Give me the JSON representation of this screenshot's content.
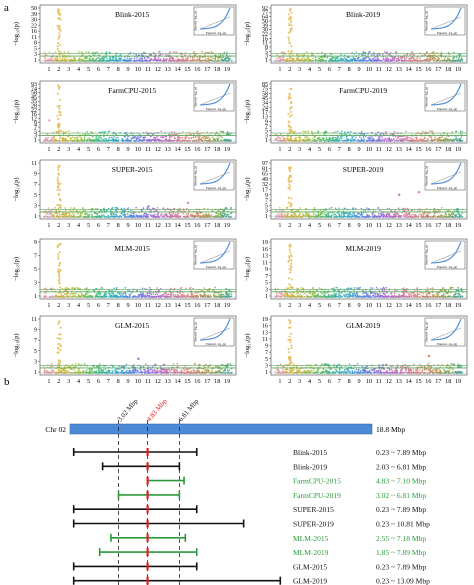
{
  "panel_a": {
    "label": "a"
  },
  "panel_b": {
    "label": "b"
  },
  "y_axis_label": "−log₁₀(p)",
  "inset_axis": {
    "x": "Expected −log₁₀(p)",
    "y": "Observed −log₁₀(p)"
  },
  "chromosomes": [
    "1",
    "2",
    "3",
    "4",
    "5",
    "6",
    "7",
    "8",
    "9",
    "10",
    "11",
    "12",
    "13",
    "14",
    "15",
    "16",
    "17",
    "18",
    "19"
  ],
  "chromosome_colors": [
    "#e8a0a0",
    "#d4b030",
    "#c8b83c",
    "#a4c040",
    "#6cc054",
    "#40b878",
    "#38b8a8",
    "#38a8c8",
    "#5090d8",
    "#7080e0",
    "#9070d8",
    "#b868c8",
    "#c870a8",
    "#d87890",
    "#e08878",
    "#c88a60",
    "#b89a50",
    "#8aa850",
    "#50a888"
  ],
  "colors": {
    "blue_line": "#4a8ad8",
    "green_line": "#5aa85a",
    "highlight": "#e8c060",
    "red": "#e02020",
    "green_text": "#2a9a3a",
    "bar_blue": "#4a8ad8"
  },
  "manhattan_plots": [
    {
      "title": "Blink-2015",
      "yticks": [
        "1",
        "3",
        "5",
        "8",
        "11",
        "16",
        "22",
        "30",
        "39",
        "50"
      ],
      "hits": [
        {
          "chrom": 2,
          "level": 0.95
        },
        {
          "chrom": 2,
          "level": 0.8
        },
        {
          "chrom": 2,
          "level": 0.65
        }
      ]
    },
    {
      "title": "Blink-2019",
      "yticks": [
        "1",
        "3",
        "5",
        "8",
        "11",
        "16",
        "22",
        "30",
        "39",
        "50",
        "64",
        "77",
        "92"
      ],
      "hits": [
        {
          "chrom": 2,
          "level": 0.98
        },
        {
          "chrom": 2,
          "level": 0.55
        },
        {
          "chrom": 16,
          "level": 0.08
        }
      ]
    },
    {
      "title": "FarmCPU-2015",
      "yticks": [
        "1",
        "3",
        "5",
        "7",
        "9",
        "12",
        "16",
        "22",
        "28",
        "35",
        "45",
        "58",
        "74",
        "93"
      ],
      "hits": [
        {
          "chrom": 2,
          "level": 0.95
        },
        {
          "chrom": 1,
          "level": 0.35
        },
        {
          "chrom": 2,
          "level": 0.5
        }
      ]
    },
    {
      "title": "FarmCPU-2019",
      "yticks": [
        "1",
        "3",
        "5",
        "7",
        "9",
        "13",
        "17",
        "24",
        "34",
        "45",
        "58",
        "75",
        "85"
      ],
      "hits": [
        {
          "chrom": 2,
          "level": 0.75
        },
        {
          "chrom": 2,
          "level": 0.15
        }
      ]
    },
    {
      "title": "SUPER-2015",
      "yticks": [
        "1",
        "3",
        "5",
        "7",
        "9",
        "11"
      ],
      "hits": [
        {
          "chrom": 2,
          "level": 0.95
        },
        {
          "chrom": 15,
          "level": 0.25
        },
        {
          "chrom": 11,
          "level": 0.18
        }
      ]
    },
    {
      "title": "SUPER-2019",
      "yticks": [
        "1",
        "3",
        "5",
        "7",
        "9",
        "17",
        "32",
        "49",
        "65",
        "81",
        "97"
      ],
      "hits": [
        {
          "chrom": 2,
          "level": 0.9
        },
        {
          "chrom": 15,
          "level": 0.45
        },
        {
          "chrom": 13,
          "level": 0.4
        }
      ]
    },
    {
      "title": "MLM-2015",
      "yticks": [
        "1",
        "3",
        "5",
        "7",
        "9"
      ],
      "hits": [
        {
          "chrom": 2,
          "level": 0.95
        }
      ]
    },
    {
      "title": "MLM-2019",
      "yticks": [
        "1",
        "3",
        "5",
        "7",
        "9",
        "11",
        "13",
        "16",
        "19"
      ],
      "hits": [
        {
          "chrom": 2,
          "level": 0.95
        }
      ]
    },
    {
      "title": "GLM-2015",
      "yticks": [
        "1",
        "3",
        "5",
        "7",
        "9",
        "11"
      ],
      "hits": [
        {
          "chrom": 2,
          "level": 0.95
        },
        {
          "chrom": 10,
          "level": 0.25
        }
      ]
    },
    {
      "title": "GLM-2019",
      "yticks": [
        "1",
        "3",
        "5",
        "7",
        "9",
        "11",
        "13",
        "16",
        "19"
      ],
      "hits": [
        {
          "chrom": 2,
          "level": 0.95
        },
        {
          "chrom": 16,
          "level": 0.3
        }
      ]
    }
  ],
  "interval_diagram": {
    "chromosome_label": "Chr 02",
    "length_label": "18.8 Mbp",
    "chrom_length": 18.8,
    "markers": [
      {
        "label": "3.02 Mbp",
        "pos": 3.02,
        "color": "#222222"
      },
      {
        "label": "4.83 Mbp",
        "pos": 4.83,
        "color": "#e02020"
      },
      {
        "label": "6.81 Mbp",
        "pos": 6.81,
        "color": "#222222"
      }
    ],
    "intervals": [
      {
        "name": "Blink-2015",
        "range": "0.23 ~ 7.89 Mbp",
        "start": 0.23,
        "end": 7.89,
        "color": "black"
      },
      {
        "name": "Blink-2019",
        "range": "2.03 ~ 6.81 Mbp",
        "start": 2.03,
        "end": 6.81,
        "color": "black"
      },
      {
        "name": "FarmCPU-2015",
        "range": "4.83 ~ 7.10 Mbp",
        "start": 4.83,
        "end": 7.1,
        "color": "green"
      },
      {
        "name": "FarmCPU-2019",
        "range": "3.02 ~ 6.81 Mbp",
        "start": 3.02,
        "end": 6.81,
        "color": "green"
      },
      {
        "name": "SUPER-2015",
        "range": "0.23 ~ 7.89 Mbp",
        "start": 0.23,
        "end": 7.89,
        "color": "black"
      },
      {
        "name": "SUPER-2019",
        "range": "0.23 ~ 10.81 Mbp",
        "start": 0.23,
        "end": 10.81,
        "color": "black"
      },
      {
        "name": "MLM-2015",
        "range": "2.55 ~ 7.18 Mbp",
        "start": 2.55,
        "end": 7.18,
        "color": "green"
      },
      {
        "name": "MLM-2019",
        "range": "1.85 ~ 7.89 Mbp",
        "start": 1.85,
        "end": 7.89,
        "color": "green"
      },
      {
        "name": "GLM-2015",
        "range": "0.23 ~ 7.89 Mbp",
        "start": 0.23,
        "end": 7.89,
        "color": "black"
      },
      {
        "name": "GLM-2019",
        "range": "0.23 ~ 13.09 Mbp",
        "start": 0.23,
        "end": 13.09,
        "color": "black"
      }
    ]
  }
}
